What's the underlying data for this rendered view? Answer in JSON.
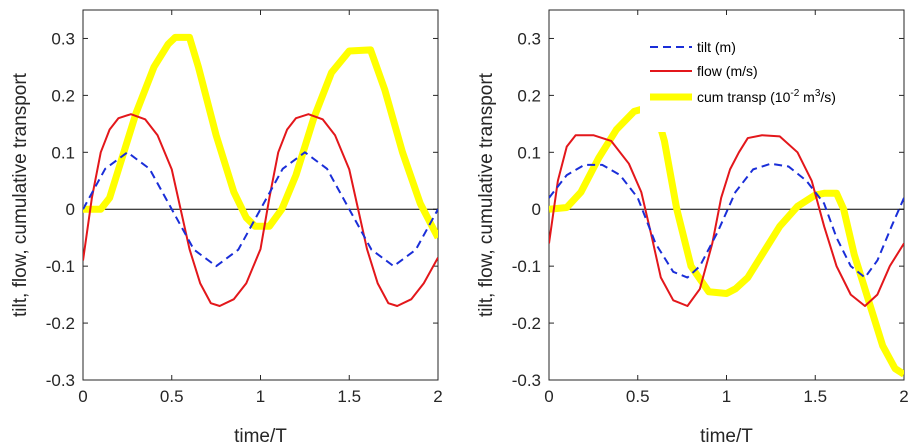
{
  "colors": {
    "tilt": "#1a2ed8",
    "flow": "#e3171b",
    "cum": "#ffff00",
    "axis": "#262626",
    "zero_line": "#000000"
  },
  "legend": {
    "tilt": "tilt (m)",
    "flow": "flow (m/s)",
    "cum_pre": "cum transp (10",
    "cum_sup1": "-2",
    "cum_mid": " m",
    "cum_sup2": "3",
    "cum_post": "/s)"
  },
  "chart_data": [
    {
      "type": "line",
      "xlabel": "time/T",
      "ylabel": "tilt, flow, cumulative transport",
      "xlim": [
        0,
        2
      ],
      "ylim": [
        -0.3,
        0.35
      ],
      "xticks": [
        "0",
        "0.5",
        "1",
        "1.5",
        "2"
      ],
      "yticks": [
        "-0.3",
        "-0.2",
        "-0.1",
        "0",
        "0.1",
        "0.2",
        "0.3"
      ],
      "zero_line": true,
      "grid": false,
      "series": [
        {
          "key": "tilt",
          "style": "dashed",
          "points": [
            [
              0,
              0
            ],
            [
              0.125,
              0.071
            ],
            [
              0.25,
              0.1
            ],
            [
              0.375,
              0.071
            ],
            [
              0.5,
              0
            ],
            [
              0.625,
              -0.071
            ],
            [
              0.75,
              -0.1
            ],
            [
              0.875,
              -0.071
            ],
            [
              1,
              0
            ],
            [
              1.125,
              0.071
            ],
            [
              1.25,
              0.1
            ],
            [
              1.375,
              0.071
            ],
            [
              1.5,
              0
            ],
            [
              1.625,
              -0.071
            ],
            [
              1.75,
              -0.1
            ],
            [
              1.875,
              -0.071
            ],
            [
              2,
              0
            ]
          ]
        },
        {
          "key": "flow",
          "style": "solid",
          "points": [
            [
              0,
              -0.09
            ],
            [
              0.05,
              0.02
            ],
            [
              0.1,
              0.1
            ],
            [
              0.15,
              0.14
            ],
            [
              0.2,
              0.16
            ],
            [
              0.27,
              0.167
            ],
            [
              0.35,
              0.158
            ],
            [
              0.42,
              0.13
            ],
            [
              0.5,
              0.07
            ],
            [
              0.55,
              0.0
            ],
            [
              0.6,
              -0.07
            ],
            [
              0.66,
              -0.13
            ],
            [
              0.72,
              -0.165
            ],
            [
              0.77,
              -0.17
            ],
            [
              0.85,
              -0.158
            ],
            [
              0.92,
              -0.13
            ],
            [
              1.0,
              -0.07
            ],
            [
              1.05,
              0.02
            ],
            [
              1.1,
              0.1
            ],
            [
              1.15,
              0.14
            ],
            [
              1.2,
              0.16
            ],
            [
              1.27,
              0.167
            ],
            [
              1.35,
              0.158
            ],
            [
              1.42,
              0.13
            ],
            [
              1.5,
              0.07
            ],
            [
              1.55,
              0.0
            ],
            [
              1.6,
              -0.07
            ],
            [
              1.66,
              -0.13
            ],
            [
              1.72,
              -0.165
            ],
            [
              1.77,
              -0.17
            ],
            [
              1.85,
              -0.158
            ],
            [
              1.92,
              -0.13
            ],
            [
              2.0,
              -0.085
            ]
          ]
        },
        {
          "key": "cum",
          "style": "thick",
          "points": [
            [
              0,
              0
            ],
            [
              0.1,
              0
            ],
            [
              0.15,
              0.02
            ],
            [
              0.2,
              0.07
            ],
            [
              0.3,
              0.17
            ],
            [
              0.4,
              0.25
            ],
            [
              0.48,
              0.29
            ],
            [
              0.52,
              0.302
            ],
            [
              0.6,
              0.302
            ],
            [
              0.65,
              0.25
            ],
            [
              0.75,
              0.13
            ],
            [
              0.85,
              0.03
            ],
            [
              0.92,
              -0.015
            ],
            [
              0.97,
              -0.03
            ],
            [
              1.05,
              -0.03
            ],
            [
              1.12,
              0
            ],
            [
              1.2,
              0.06
            ],
            [
              1.3,
              0.16
            ],
            [
              1.4,
              0.24
            ],
            [
              1.5,
              0.278
            ],
            [
              1.62,
              0.28
            ],
            [
              1.7,
              0.21
            ],
            [
              1.8,
              0.1
            ],
            [
              1.9,
              0.01
            ],
            [
              2,
              -0.05
            ]
          ]
        }
      ]
    },
    {
      "type": "line",
      "xlabel": "time/T",
      "ylabel": "tilt, flow, cumulative transport",
      "xlim": [
        0,
        2
      ],
      "ylim": [
        -0.3,
        0.35
      ],
      "xticks": [
        "0",
        "0.5",
        "1",
        "1.5",
        "2"
      ],
      "yticks": [
        "-0.3",
        "-0.2",
        "-0.1",
        "0",
        "0.1",
        "0.2",
        "0.3"
      ],
      "zero_line": true,
      "grid": false,
      "legend_position": "top-right",
      "series": [
        {
          "key": "tilt",
          "style": "dashed",
          "points": [
            [
              0,
              0.02
            ],
            [
              0.1,
              0.06
            ],
            [
              0.2,
              0.078
            ],
            [
              0.3,
              0.078
            ],
            [
              0.4,
              0.06
            ],
            [
              0.5,
              0.02
            ],
            [
              0.6,
              -0.06
            ],
            [
              0.7,
              -0.11
            ],
            [
              0.78,
              -0.12
            ],
            [
              0.85,
              -0.1
            ],
            [
              0.95,
              -0.04
            ],
            [
              1.05,
              0.03
            ],
            [
              1.15,
              0.07
            ],
            [
              1.25,
              0.08
            ],
            [
              1.35,
              0.075
            ],
            [
              1.45,
              0.05
            ],
            [
              1.55,
              0.01
            ],
            [
              1.62,
              -0.05
            ],
            [
              1.7,
              -0.1
            ],
            [
              1.78,
              -0.12
            ],
            [
              1.85,
              -0.09
            ],
            [
              1.93,
              -0.03
            ],
            [
              2,
              0.02
            ]
          ]
        },
        {
          "key": "flow",
          "style": "solid",
          "points": [
            [
              0,
              -0.06
            ],
            [
              0.05,
              0.05
            ],
            [
              0.1,
              0.11
            ],
            [
              0.15,
              0.13
            ],
            [
              0.25,
              0.13
            ],
            [
              0.35,
              0.12
            ],
            [
              0.45,
              0.08
            ],
            [
              0.52,
              0.03
            ],
            [
              0.58,
              -0.05
            ],
            [
              0.63,
              -0.12
            ],
            [
              0.7,
              -0.16
            ],
            [
              0.78,
              -0.17
            ],
            [
              0.85,
              -0.14
            ],
            [
              0.92,
              -0.06
            ],
            [
              0.97,
              0.02
            ],
            [
              1.02,
              0.07
            ],
            [
              1.07,
              0.1
            ],
            [
              1.12,
              0.125
            ],
            [
              1.2,
              0.13
            ],
            [
              1.3,
              0.128
            ],
            [
              1.4,
              0.1
            ],
            [
              1.48,
              0.05
            ],
            [
              1.55,
              -0.03
            ],
            [
              1.62,
              -0.1
            ],
            [
              1.7,
              -0.15
            ],
            [
              1.78,
              -0.17
            ],
            [
              1.85,
              -0.15
            ],
            [
              1.92,
              -0.1
            ],
            [
              2,
              -0.06
            ]
          ]
        },
        {
          "key": "cum",
          "style": "thick",
          "points": [
            [
              0,
              0
            ],
            [
              0.1,
              0.003
            ],
            [
              0.18,
              0.03
            ],
            [
              0.28,
              0.09
            ],
            [
              0.38,
              0.14
            ],
            [
              0.48,
              0.172
            ],
            [
              0.55,
              0.178
            ],
            [
              0.6,
              0.175
            ],
            [
              0.65,
              0.12
            ],
            [
              0.72,
              0.0
            ],
            [
              0.8,
              -0.1
            ],
            [
              0.9,
              -0.145
            ],
            [
              1.0,
              -0.148
            ],
            [
              1.05,
              -0.14
            ],
            [
              1.12,
              -0.12
            ],
            [
              1.2,
              -0.08
            ],
            [
              1.3,
              -0.03
            ],
            [
              1.4,
              0.005
            ],
            [
              1.5,
              0.025
            ],
            [
              1.55,
              0.028
            ],
            [
              1.62,
              0.028
            ],
            [
              1.66,
              0.0
            ],
            [
              1.72,
              -0.08
            ],
            [
              1.8,
              -0.16
            ],
            [
              1.88,
              -0.24
            ],
            [
              1.95,
              -0.28
            ],
            [
              2,
              -0.29
            ]
          ]
        }
      ]
    }
  ]
}
